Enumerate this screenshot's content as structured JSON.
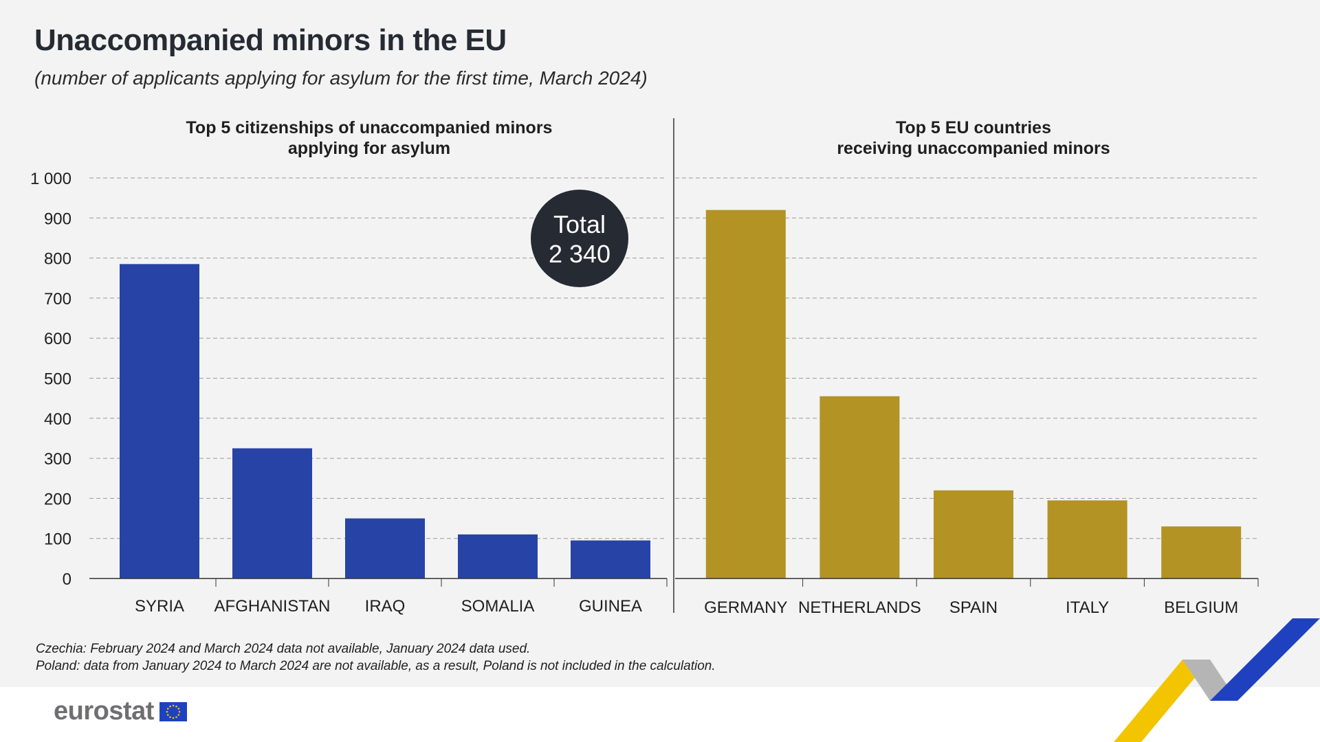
{
  "header": {
    "title": "Unaccompanied minors in the EU",
    "subtitle": "(number of applicants applying for asylum for the first time, March 2024)"
  },
  "chart_data": [
    {
      "type": "bar",
      "title_lines": [
        "Top 5 citizenships of unaccompanied minors",
        "applying for asylum"
      ],
      "categories": [
        "SYRIA",
        "AFGHANISTAN",
        "IRAQ",
        "SOMALIA",
        "GUINEA"
      ],
      "values": [
        785,
        325,
        150,
        110,
        95
      ],
      "color": "#2743a6",
      "ylim": [
        0,
        1000
      ],
      "yticks": [
        "0",
        "100",
        "200",
        "300",
        "400",
        "500",
        "600",
        "700",
        "800",
        "900",
        "1 000"
      ],
      "grid": true,
      "annotation": {
        "line1": "Total",
        "line2": "2 340"
      }
    },
    {
      "type": "bar",
      "title_lines": [
        "Top 5 EU countries",
        "receiving unaccompanied minors"
      ],
      "categories": [
        "GERMANY",
        "NETHERLANDS",
        "SPAIN",
        "ITALY",
        "BELGIUM"
      ],
      "values": [
        920,
        455,
        220,
        195,
        130
      ],
      "color": "#b29324",
      "ylim": [
        0,
        1000
      ],
      "grid": true
    }
  ],
  "colors": {
    "annotation_bg": "#262b33",
    "ribbon_yellow": "#f2c500",
    "ribbon_grey": "#b5b5b5",
    "ribbon_blue": "#1f41c0"
  },
  "footnotes": [
    "Czechia: February 2024 and March 2024 data not available, January 2024 data used.",
    "Poland: data from January 2024 to March 2024 are not available, as a result, Poland is not included in the calculation."
  ],
  "logo": {
    "text": "eurostat",
    "icon": "eu-flag-icon"
  }
}
